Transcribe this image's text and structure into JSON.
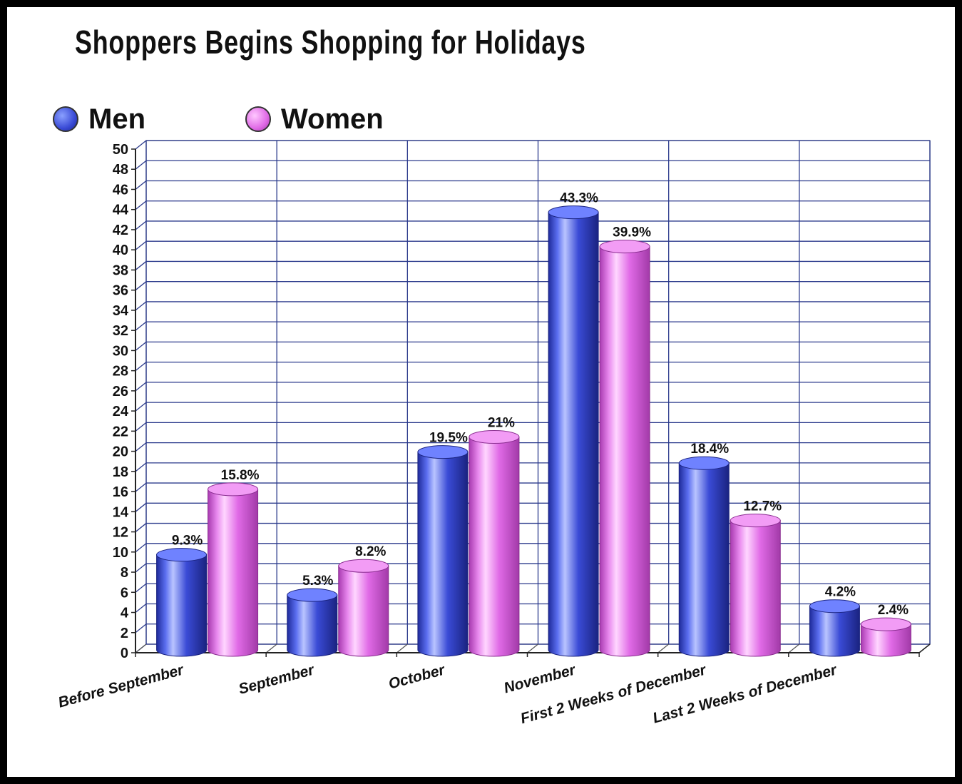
{
  "chart_data": {
    "type": "bar",
    "title": "Shoppers Begins Shopping for Holidays",
    "categories": [
      "Before September",
      "September",
      "October",
      "November",
      "First 2 Weeks of December",
      "Last 2 Weeks of December"
    ],
    "series": [
      {
        "name": "Men",
        "color": "#3a4bd6",
        "values": [
          9.3,
          5.3,
          19.5,
          43.3,
          18.4,
          4.2
        ],
        "labels": [
          "9.3%",
          "5.3%",
          "19.5%",
          "43.3%",
          "18.4%",
          "4.2%"
        ]
      },
      {
        "name": "Women",
        "color": "#e06ae6",
        "values": [
          15.8,
          8.2,
          21,
          39.9,
          12.7,
          2.4
        ],
        "labels": [
          "15.8%",
          "8.2%",
          "21%",
          "39.9%",
          "12.7%",
          "2.4%"
        ]
      }
    ],
    "yticks": [
      "0",
      "2",
      "4",
      "6",
      "8",
      "10",
      "12",
      "14",
      "16",
      "18",
      "20",
      "22",
      "24",
      "26",
      "28",
      "30",
      "32",
      "34",
      "36",
      "38",
      "40",
      "42",
      "44",
      "46",
      "48",
      "50"
    ],
    "ylim": [
      0,
      50
    ],
    "xlabel": "",
    "ylabel": "",
    "grid": true,
    "legend_position": "top-left",
    "bar_style": "3d-cylinder"
  }
}
